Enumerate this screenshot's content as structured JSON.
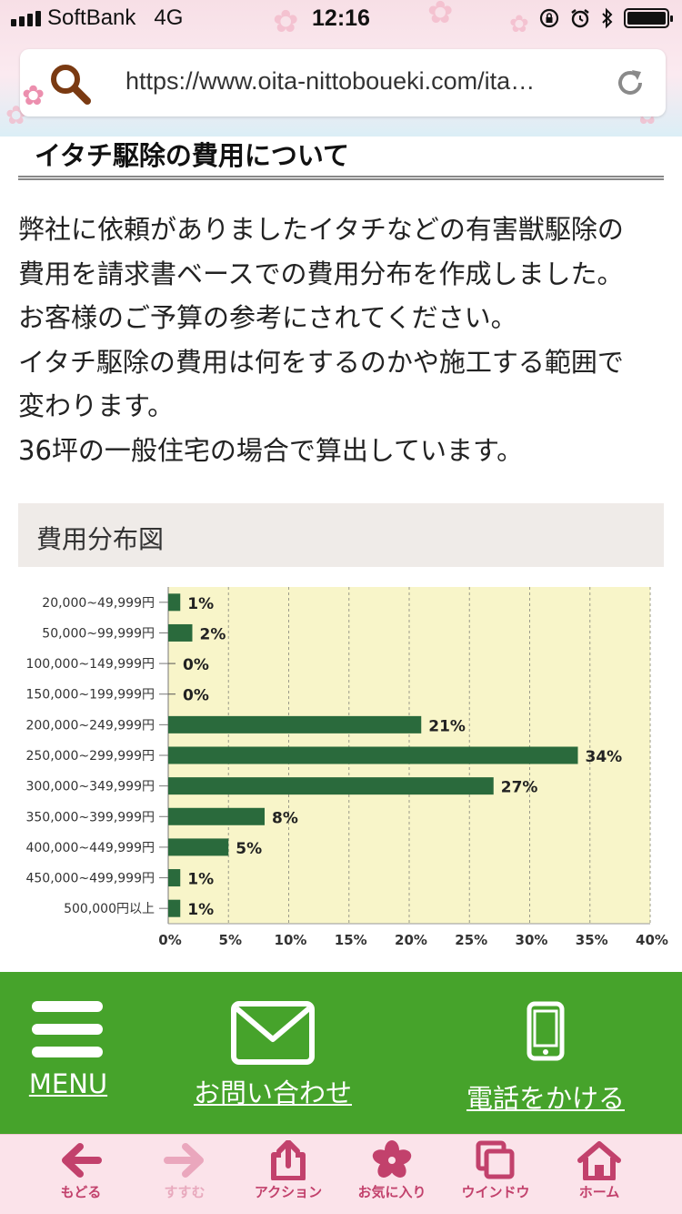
{
  "status": {
    "carrier": "SoftBank",
    "network": "4G",
    "time": "12:16"
  },
  "browser": {
    "url": "https://www.oita-nittoboueki.com/ita…"
  },
  "article": {
    "section_title": "イタチ駆除の費用について",
    "paragraph_lines": [
      "弊社に依頼がありましたイタチなどの有害獣駆除の",
      "費用を請求書ベースでの費用分布を作成しました。",
      "お客様のご予算の参考にされてください。",
      "イタチ駆除の費用は何をするのかや施工する範囲で",
      "変わります。",
      "36坪の一般住宅の場合で算出しています。"
    ],
    "chart_heading": "費用分布図"
  },
  "chart_data": {
    "type": "bar",
    "orientation": "horizontal",
    "categories": [
      "20,000~49,999円",
      "50,000~99,999円",
      "100,000~149,999円",
      "150,000~199,999円",
      "200,000~249,999円",
      "250,000~299,999円",
      "300,000~349,999円",
      "350,000~399,999円",
      "400,000~449,999円",
      "450,000~499,999円",
      "500,000円以上"
    ],
    "values": [
      1,
      2,
      0,
      0,
      21,
      34,
      27,
      8,
      5,
      1,
      1
    ],
    "value_labels": [
      "1%",
      "2%",
      "0%",
      "0%",
      "21%",
      "34%",
      "27%",
      "8%",
      "5%",
      "1%",
      "1%"
    ],
    "xlim": [
      0,
      40
    ],
    "xticks": [
      0,
      5,
      10,
      15,
      20,
      25,
      30,
      35,
      40
    ],
    "xtick_labels": [
      "0%",
      "5%",
      "10%",
      "15%",
      "20%",
      "25%",
      "30%",
      "35%",
      "40%"
    ],
    "grid": true,
    "colors": {
      "bar": "#2a6a3c",
      "plot_background": "#f8f5c9",
      "grid": "#9b9b8a"
    }
  },
  "banner": {
    "menu_label": "MENU",
    "contact_label": "お問い合わせ",
    "phone_label": "電話をかける"
  },
  "toolbar": {
    "items": [
      {
        "label": "もどる",
        "icon": "back-arrow-icon"
      },
      {
        "label": "すすむ",
        "icon": "forward-arrow-icon"
      },
      {
        "label": "アクション",
        "icon": "share-icon"
      },
      {
        "label": "お気に入り",
        "icon": "sakura-icon"
      },
      {
        "label": "ウインドウ",
        "icon": "windows-icon"
      },
      {
        "label": "ホーム",
        "icon": "home-icon"
      }
    ]
  },
  "colors": {
    "banner_green": "#46a32b",
    "toolbar_pink": "#fbe3ea",
    "toolbar_accent": "#c2416c"
  }
}
